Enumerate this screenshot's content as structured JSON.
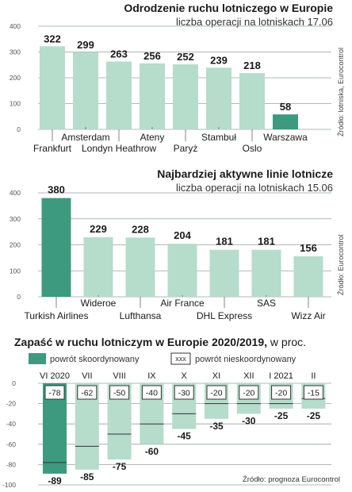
{
  "colors": {
    "light_bar": "#b6dccb",
    "dark_bar": "#3d9a7e",
    "grid": "#9aa0a0",
    "axis_text": "#555555",
    "text": "#1a1a1a"
  },
  "chart_data": [
    {
      "type": "bar",
      "title": "Odrodzenie ruchu lotniczego w Europie",
      "subtitle": "liczba operacji na lotniskach 17.06",
      "source": "Źródło: lotniska, Eurocontrol",
      "categories": [
        "Frankfurt",
        "Amsterdam",
        "Londyn Heathrow",
        "Ateny",
        "Paryż",
        "Stambuł",
        "Oslo",
        "Warszawa"
      ],
      "values": [
        322,
        299,
        263,
        256,
        252,
        239,
        218,
        58
      ],
      "value_labels": [
        "322",
        "299",
        "263",
        "256",
        "252",
        "239",
        "218",
        "58"
      ],
      "highlight_index": 7,
      "ylim": [
        0,
        400
      ],
      "yticks": [
        0,
        100,
        200,
        300,
        400
      ],
      "ytick_labels": [
        "0",
        "100",
        "200",
        "300",
        "400"
      ],
      "grid": "horizontal"
    },
    {
      "type": "bar",
      "title": "Najbardziej aktywne linie lotnicze",
      "subtitle": "liczba operacji na lotniskach 15.06",
      "source": "Źródło: Eurocontrol",
      "categories": [
        "Turkish Airlines",
        "Wideroe",
        "Lufthansa",
        "Air France",
        "DHL Express",
        "SAS",
        "Wizz Air"
      ],
      "values": [
        380,
        229,
        228,
        204,
        181,
        181,
        156
      ],
      "value_labels": [
        "380",
        "229",
        "228",
        "204",
        "181",
        "181",
        "156"
      ],
      "highlight_index": 0,
      "ylim": [
        0,
        400
      ],
      "yticks": [
        0,
        100,
        200,
        300,
        400
      ],
      "ytick_labels": [
        "0",
        "100",
        "200",
        "300",
        "400"
      ],
      "grid": "horizontal"
    },
    {
      "type": "bar",
      "title": "Zapaść w ruchu lotniczym w Europie 2020/2019,",
      "title_unit": "w proc.",
      "source": "Źródło: prognoza Eurocontrol",
      "legend": {
        "coordinated": "powrót skoordynowany",
        "uncoordinated_box": "xxx",
        "uncoordinated": "powrót nieskoordynowany"
      },
      "categories": [
        "VI 2020",
        "VII",
        "VIII",
        "IX",
        "X",
        "XI",
        "XII",
        "I 2021",
        "II"
      ],
      "series": [
        {
          "name": "powrót skoordynowany",
          "values": [
            -89,
            -85,
            -75,
            -60,
            -45,
            -35,
            -30,
            -25,
            -25
          ],
          "labels": [
            "-89",
            "-85",
            "-75",
            "-60",
            "-45",
            "-35",
            "-30",
            "-25",
            "-25"
          ]
        },
        {
          "name": "powrót nieskoordynowany",
          "values": [
            -78,
            -62,
            -50,
            -40,
            -30,
            -20,
            -20,
            -20,
            -15
          ],
          "labels": [
            "-78",
            "-62",
            "-50",
            "-40",
            "-30",
            "-20",
            "-20",
            "-20",
            "-15"
          ]
        }
      ],
      "highlight_index": 0,
      "ylim": [
        -100,
        0
      ],
      "yticks": [
        0,
        -20,
        -40,
        -60,
        -80,
        -100
      ],
      "ytick_labels": [
        "0",
        "-20",
        "-40",
        "-60",
        "-80",
        "-100"
      ],
      "grid": "horizontal"
    }
  ]
}
